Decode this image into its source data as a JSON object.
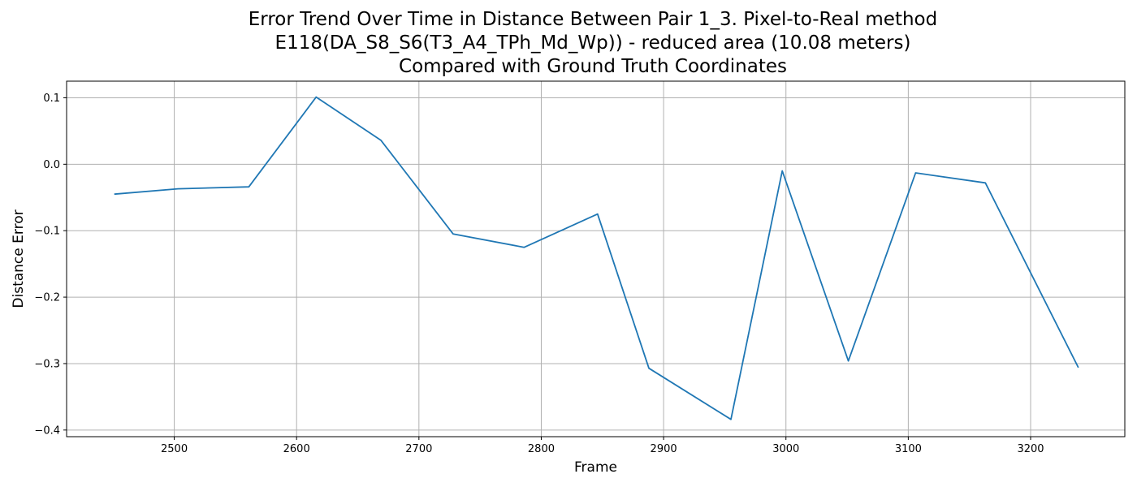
{
  "chart_data": {
    "type": "line",
    "title_lines": [
      "Error Trend Over Time in Distance Between Pair 1_3. Pixel-to-Real method",
      "E118(DA_S8_S6(T3_A4_TPh_Md_Wp)) - reduced area (10.08 meters)",
      "Compared with Ground Truth Coordinates"
    ],
    "xlabel": "Frame",
    "ylabel": "Distance Error",
    "xlim": [
      2412,
      3277
    ],
    "ylim": [
      -0.41,
      0.125
    ],
    "x_ticks": [
      2500,
      2600,
      2700,
      2800,
      2900,
      3000,
      3100,
      3200
    ],
    "y_ticks": [
      0.1,
      0.0,
      -0.1,
      -0.2,
      -0.3,
      -0.4
    ],
    "y_tick_labels": [
      "0.1",
      "0.0",
      "−0.1",
      "−0.2",
      "−0.3",
      "−0.4"
    ],
    "grid": true,
    "series": [
      {
        "color": "#1f77b4",
        "x": [
          2451,
          2503,
          2561,
          2616,
          2669,
          2728,
          2786,
          2846,
          2888,
          2955,
          2997,
          3051,
          3106,
          3163,
          3239
        ],
        "y": [
          -0.045,
          -0.037,
          -0.034,
          0.101,
          0.036,
          -0.105,
          -0.125,
          -0.075,
          -0.307,
          -0.384,
          -0.01,
          -0.296,
          -0.013,
          -0.028,
          -0.306
        ]
      }
    ]
  }
}
